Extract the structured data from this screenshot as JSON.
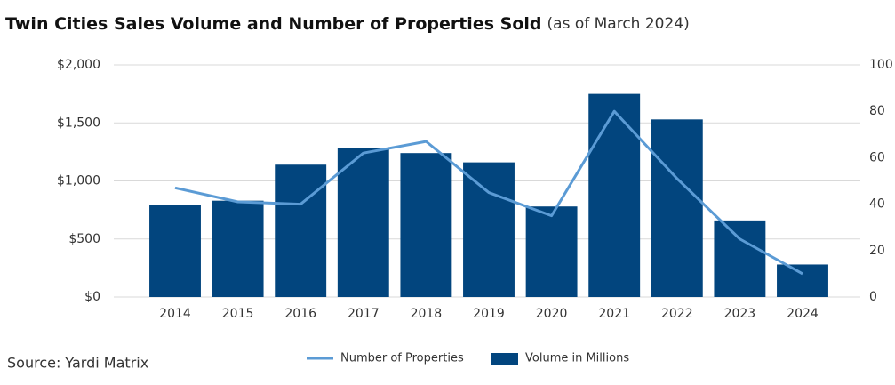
{
  "chart_data": {
    "type": "bar",
    "title": "Twin Cities Sales Volume and Number of Properties Sold",
    "subtitle": "(as of March 2024)",
    "source": "Source: Yardi Matrix",
    "categories": [
      "2014",
      "2015",
      "2016",
      "2017",
      "2018",
      "2019",
      "2020",
      "2021",
      "2022",
      "2023",
      "2024"
    ],
    "series": [
      {
        "name": "Number of Properties",
        "type": "line",
        "axis": "y2",
        "color": "#5b9bd5",
        "values": [
          47,
          41,
          40,
          62,
          67,
          45,
          35,
          80,
          51,
          25,
          10
        ]
      },
      {
        "name": "Volume in Millions",
        "type": "bar",
        "color": "#02457e",
        "values": [
          790,
          830,
          1140,
          1280,
          1240,
          1160,
          780,
          1750,
          1530,
          660,
          280
        ]
      }
    ],
    "ylim": [
      0,
      2000
    ],
    "yticks": [
      {
        "value": 0,
        "label": "$0"
      },
      {
        "value": 500,
        "label": "$500"
      },
      {
        "value": 1000,
        "label": "$1,000"
      },
      {
        "value": 1500,
        "label": "$1,500"
      },
      {
        "value": 2000,
        "label": "$2,000"
      }
    ],
    "y2lim": [
      0,
      100
    ],
    "y2ticks": [
      0,
      20,
      40,
      60,
      80,
      100
    ],
    "grid": true
  }
}
